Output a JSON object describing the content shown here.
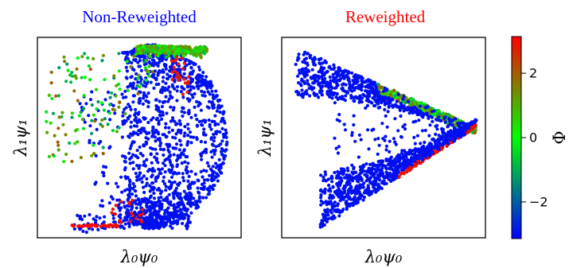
{
  "chart_data": [
    {
      "type": "scatter",
      "title": "Non-Reweighted",
      "title_color": "#0000ff",
      "xlabel": "λ₀ψ₀",
      "ylabel": "λ₁ψ₁",
      "xticks": "none",
      "yticks": "none",
      "grid": false,
      "point_color_encodes": "Φ",
      "description_of_points": "crescent-shaped cloud; dense blue points fill the right arc, green/brown/red points cluster at the top-right cap, sparse mixed-color points scatter along the upper-left edge, red points along the bottom edge"
    },
    {
      "type": "scatter",
      "title": "Reweighted",
      "title_color": "#ff0000",
      "xlabel": "λ₀ψ₀",
      "ylabel": "λ₁ψ₁",
      "xticks": "none",
      "yticks": "none",
      "grid": false,
      "point_color_encodes": "Φ",
      "description_of_points": "V / arrowhead shape pointing right; mixed colored points along the upper arm, blue points fill both arms, red points along the lower-right edge near the tip"
    }
  ],
  "colorbar": {
    "label": "Φ",
    "range": [
      -3.14,
      3.14
    ],
    "ticks": [
      {
        "value": 2,
        "label": "2"
      },
      {
        "value": 0,
        "label": "0"
      },
      {
        "value": -2,
        "label": "−2"
      }
    ],
    "colors": [
      "#0000ff",
      "#00ff00",
      "#ff0000"
    ]
  }
}
